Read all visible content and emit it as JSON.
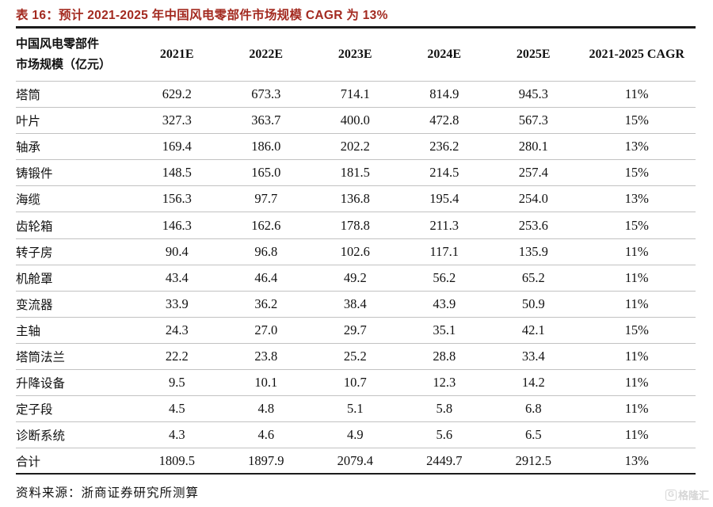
{
  "title": "表 16：预计 2021-2025 年中国风电零部件市场规模 CAGR 为 13%",
  "table": {
    "row_header_line1": "中国风电零部件",
    "row_header_line2": "市场规模（亿元）",
    "year_columns": [
      "2021E",
      "2022E",
      "2023E",
      "2024E",
      "2025E"
    ],
    "cagr_column": "2021-2025 CAGR",
    "rows": [
      {
        "label": "塔筒",
        "values": [
          "629.2",
          "673.3",
          "714.1",
          "814.9",
          "945.3"
        ],
        "cagr": "11%"
      },
      {
        "label": "叶片",
        "values": [
          "327.3",
          "363.7",
          "400.0",
          "472.8",
          "567.3"
        ],
        "cagr": "15%"
      },
      {
        "label": "轴承",
        "values": [
          "169.4",
          "186.0",
          "202.2",
          "236.2",
          "280.1"
        ],
        "cagr": "13%"
      },
      {
        "label": "铸锻件",
        "values": [
          "148.5",
          "165.0",
          "181.5",
          "214.5",
          "257.4"
        ],
        "cagr": "15%"
      },
      {
        "label": "海缆",
        "values": [
          "156.3",
          "97.7",
          "136.8",
          "195.4",
          "254.0"
        ],
        "cagr": "13%"
      },
      {
        "label": "齿轮箱",
        "values": [
          "146.3",
          "162.6",
          "178.8",
          "211.3",
          "253.6"
        ],
        "cagr": "15%"
      },
      {
        "label": "转子房",
        "values": [
          "90.4",
          "96.8",
          "102.6",
          "117.1",
          "135.9"
        ],
        "cagr": "11%"
      },
      {
        "label": "机舱罩",
        "values": [
          "43.4",
          "46.4",
          "49.2",
          "56.2",
          "65.2"
        ],
        "cagr": "11%"
      },
      {
        "label": "变流器",
        "values": [
          "33.9",
          "36.2",
          "38.4",
          "43.9",
          "50.9"
        ],
        "cagr": "11%"
      },
      {
        "label": "主轴",
        "values": [
          "24.3",
          "27.0",
          "29.7",
          "35.1",
          "42.1"
        ],
        "cagr": "15%"
      },
      {
        "label": "塔筒法兰",
        "values": [
          "22.2",
          "23.8",
          "25.2",
          "28.8",
          "33.4"
        ],
        "cagr": "11%"
      },
      {
        "label": "升降设备",
        "values": [
          "9.5",
          "10.1",
          "10.7",
          "12.3",
          "14.2"
        ],
        "cagr": "11%"
      },
      {
        "label": "定子段",
        "values": [
          "4.5",
          "4.8",
          "5.1",
          "5.8",
          "6.8"
        ],
        "cagr": "11%"
      },
      {
        "label": "诊断系统",
        "values": [
          "4.3",
          "4.6",
          "4.9",
          "5.6",
          "6.5"
        ],
        "cagr": "11%"
      },
      {
        "label": "合计",
        "values": [
          "1809.5",
          "1897.9",
          "2079.4",
          "2449.7",
          "2912.5"
        ],
        "cagr": "13%"
      }
    ]
  },
  "source": "资料来源：浙商证券研究所测算",
  "watermark": {
    "logo_letter": "G",
    "label": "格隆汇"
  },
  "colors": {
    "title_red": "#A32A20",
    "rule_dark": "#1C1C1C",
    "row_separator": "#C2C2C2",
    "watermark_gray": "#D6D6D6"
  }
}
